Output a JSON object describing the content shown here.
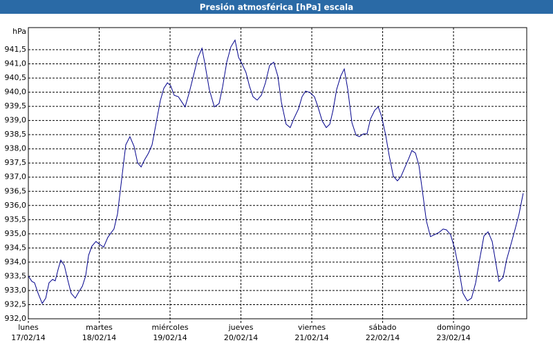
{
  "chart_data": {
    "type": "line",
    "title": "Presión atmosférica [hPa] escala",
    "ylabel": "hPa",
    "color": "#00008b",
    "grid": true,
    "x": [
      0,
      1.2,
      2.1,
      3.3,
      4.7,
      5.9,
      7.0,
      8.2,
      9.1,
      10.1,
      11.0,
      12.2,
      13.3,
      14.5,
      15.9,
      17.1,
      18.3,
      19.4,
      20.4,
      21.5,
      22.9,
      24.1,
      25.5,
      26.9,
      27.9,
      29.0,
      30.2,
      31.6,
      33.0,
      34.4,
      35.8,
      37.0,
      38.2,
      39.3,
      40.7,
      41.9,
      43.3,
      44.7,
      45.9,
      47.1,
      48.2,
      49.4,
      50.8,
      52.0,
      53.1,
      54.5,
      55.9,
      57.4,
      58.8,
      59.7,
      61.3,
      63.0,
      64.6,
      65.8,
      67.2,
      68.6,
      70.0,
      71.2,
      72.3,
      73.7,
      74.9,
      76.1,
      77.5,
      78.9,
      80.3,
      81.7,
      83.1,
      84.5,
      85.7,
      87.3,
      88.7,
      89.9,
      91.5,
      92.7,
      93.9,
      95.3,
      96.9,
      98.1,
      99.5,
      100.9,
      102.1,
      103.2,
      104.4,
      105.8,
      107.0,
      108.2,
      109.6,
      111.0,
      112.1,
      113.5,
      114.7,
      115.9,
      117.3,
      118.5,
      119.6,
      121.0,
      122.2,
      123.6,
      125.0,
      126.2,
      127.6,
      128.8,
      129.9,
      131.1,
      132.3,
      133.4,
      134.8,
      136.2,
      137.6,
      139.1,
      140.5,
      141.6,
      143.0,
      144.4,
      145.8,
      147.2,
      148.7,
      150.1,
      151.5,
      152.9,
      154.3,
      155.7,
      157.1,
      158.2,
      159.4,
      160.8,
      162.0,
      163.4,
      164.8,
      166.2,
      167.6
    ],
    "values": [
      933.51,
      933.32,
      933.27,
      932.9,
      932.54,
      932.73,
      933.27,
      933.39,
      933.34,
      933.75,
      934.07,
      933.88,
      933.39,
      932.9,
      932.73,
      932.95,
      933.15,
      933.51,
      934.24,
      934.56,
      934.73,
      934.63,
      934.53,
      934.87,
      935.02,
      935.17,
      935.7,
      936.92,
      938.14,
      938.43,
      938.09,
      937.51,
      937.36,
      937.6,
      937.85,
      938.14,
      938.92,
      939.7,
      940.14,
      940.33,
      940.23,
      939.89,
      939.84,
      939.65,
      939.48,
      939.99,
      940.57,
      941.21,
      941.55,
      941.06,
      940.09,
      939.48,
      939.6,
      940.19,
      941.06,
      941.6,
      941.84,
      941.23,
      941.01,
      940.7,
      940.21,
      939.84,
      939.72,
      939.89,
      940.33,
      940.94,
      941.06,
      940.57,
      939.65,
      938.87,
      938.75,
      939.06,
      939.41,
      939.84,
      940.04,
      939.99,
      939.84,
      939.48,
      938.99,
      938.75,
      938.87,
      939.36,
      940.09,
      940.57,
      940.82,
      940.09,
      938.92,
      938.48,
      938.43,
      938.53,
      938.53,
      939.06,
      939.36,
      939.48,
      939.16,
      938.5,
      937.77,
      937.04,
      936.87,
      937.02,
      937.36,
      937.65,
      937.94,
      937.85,
      937.41,
      936.56,
      935.46,
      934.9,
      934.97,
      935.05,
      935.17,
      935.14,
      934.97,
      934.48,
      933.75,
      932.9,
      932.63,
      932.73,
      933.27,
      934.12,
      934.92,
      935.07,
      934.73,
      934.05,
      933.32,
      933.46,
      934.09,
      934.61,
      935.14,
      935.7,
      936.43
    ],
    "xlim": [
      0,
      168.8
    ],
    "xticks": [
      {
        "value": 0,
        "label": [
          "lunes",
          "17/02/14"
        ]
      },
      {
        "value": 24,
        "label": [
          "martes",
          "18/02/14"
        ]
      },
      {
        "value": 48,
        "label": [
          "miércoles",
          "19/02/14"
        ]
      },
      {
        "value": 72,
        "label": [
          "jueves",
          "20/02/14"
        ]
      },
      {
        "value": 96,
        "label": [
          "viernes",
          "21/02/14"
        ]
      },
      {
        "value": 120,
        "label": [
          "sábado",
          "22/02/14"
        ]
      },
      {
        "value": 144,
        "label": [
          "domingo",
          "23/02/14"
        ]
      }
    ],
    "ylim": [
      932,
      942.28
    ],
    "yticks": [
      {
        "value": 932,
        "label": "932,0"
      },
      {
        "value": 932.5,
        "label": "932,5"
      },
      {
        "value": 933,
        "label": "933,0"
      },
      {
        "value": 933.5,
        "label": "933,5"
      },
      {
        "value": 934,
        "label": "934,0"
      },
      {
        "value": 934.5,
        "label": "934,5"
      },
      {
        "value": 935,
        "label": "935,0"
      },
      {
        "value": 935.5,
        "label": "935,5"
      },
      {
        "value": 936,
        "label": "936,0"
      },
      {
        "value": 936.5,
        "label": "936,5"
      },
      {
        "value": 937,
        "label": "937,0"
      },
      {
        "value": 937.5,
        "label": "937,5"
      },
      {
        "value": 938,
        "label": "938,0"
      },
      {
        "value": 938.5,
        "label": "938,5"
      },
      {
        "value": 939,
        "label": "939,0"
      },
      {
        "value": 939.5,
        "label": "939,5"
      },
      {
        "value": 940,
        "label": "940,0"
      },
      {
        "value": 940.5,
        "label": "940,5"
      },
      {
        "value": 941,
        "label": "941,0"
      },
      {
        "value": 941.5,
        "label": "941,5"
      }
    ]
  }
}
